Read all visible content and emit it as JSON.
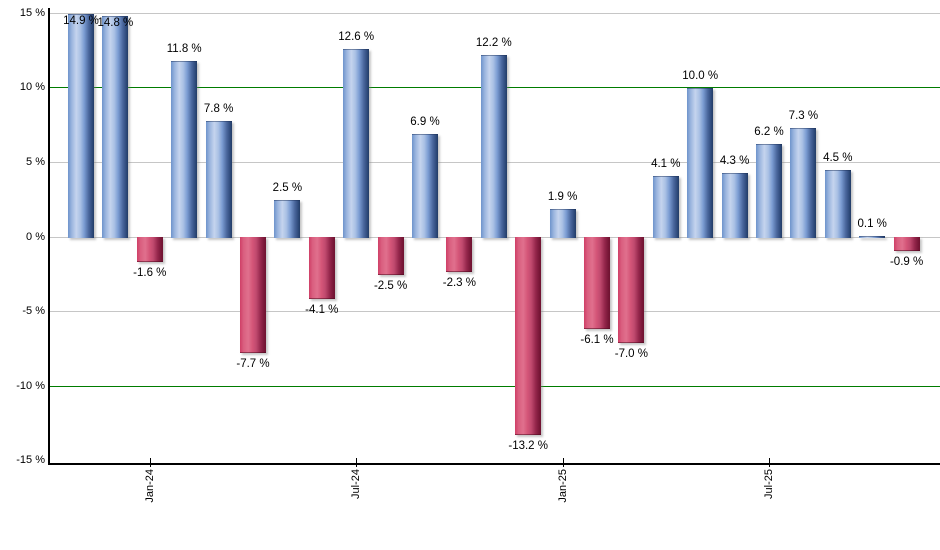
{
  "chart_data": {
    "type": "bar",
    "title": "",
    "xlabel": "",
    "ylabel": "",
    "ylim": [
      -15,
      15
    ],
    "values": [
      14.9,
      14.8,
      -1.6,
      11.8,
      7.8,
      -7.7,
      2.5,
      -4.1,
      12.6,
      -2.5,
      6.9,
      -2.3,
      12.2,
      -13.2,
      1.9,
      -6.1,
      -7.0,
      4.1,
      10.0,
      4.3,
      6.2,
      7.3,
      4.5,
      0.1,
      -0.9
    ],
    "bar_labels": [
      "14.9 %",
      "14.8 %",
      "-1.6 %",
      "11.8 %",
      "7.8 %",
      "-7.7 %",
      "2.5 %",
      "-4.1 %",
      "12.6 %",
      "-2.5 %",
      "6.9 %",
      "-2.3 %",
      "12.2 %",
      "-13.2 %",
      "1.9 %",
      "-6.1 %",
      "-7.0 %",
      "4.1 %",
      "10.0 %",
      "4.3 %",
      "6.2 %",
      "7.3 %",
      "4.5 %",
      "0.1 %",
      "-0.9 %"
    ],
    "x_ticks": [
      {
        "label": "Jan-24",
        "bar_index": 2
      },
      {
        "label": "Jul-24",
        "bar_index": 8
      },
      {
        "label": "Jan-25",
        "bar_index": 14
      },
      {
        "label": "Jul-25",
        "bar_index": 20
      }
    ],
    "y_ticks": [
      {
        "label": "15 %",
        "value": 15
      },
      {
        "label": "10 %",
        "value": 10
      },
      {
        "label": "5 %",
        "value": 5
      },
      {
        "label": "0 %",
        "value": 0
      },
      {
        "label": "-5 %",
        "value": -5
      },
      {
        "label": "-10 %",
        "value": -10
      },
      {
        "label": "-15 %",
        "value": -15
      }
    ],
    "grid": {
      "gray_values": [
        15,
        5,
        0,
        -5
      ],
      "green_values": [
        10,
        -10
      ]
    },
    "legend": null,
    "colors": {
      "positive_bar": "#6e94cb",
      "positive_bar_highlight": "#c5d4ee",
      "positive_bar_shadow": "#233c66",
      "negative_bar": "#cf3f66",
      "negative_bar_highlight": "#e0708d",
      "negative_bar_shadow": "#6f1231",
      "grid_gray": "#c6c6c6",
      "grid_green": "#007c00",
      "axis": "#000000",
      "label_text": "#000000",
      "background": "#ffffff"
    }
  }
}
